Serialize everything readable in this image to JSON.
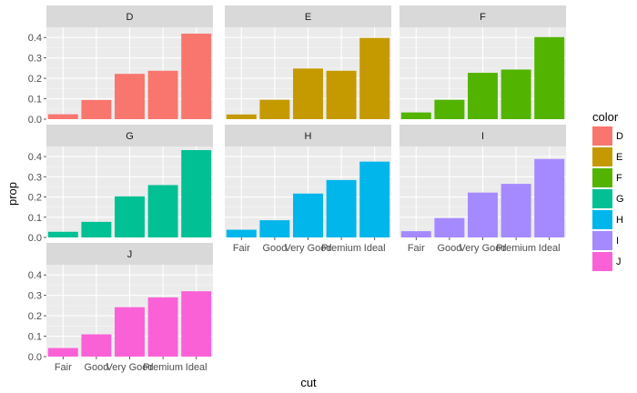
{
  "chart_data": {
    "type": "bar",
    "xlabel": "cut",
    "ylabel": "prop",
    "categories": [
      "Fair",
      "Good",
      "Very Good",
      "Premium",
      "Ideal"
    ],
    "ylim": [
      0,
      0.45
    ],
    "yticks": [
      "0.0",
      "0.1",
      "0.2",
      "0.3",
      "0.4"
    ],
    "ytick_values": [
      0,
      0.1,
      0.2,
      0.3,
      0.4
    ],
    "legend": {
      "title": "color",
      "placement": "right"
    },
    "grid": true,
    "panels": [
      {
        "name": "D",
        "color": "#F8766D",
        "values": [
          0.024,
          0.094,
          0.222,
          0.237,
          0.419
        ]
      },
      {
        "name": "E",
        "color": "#C49A00",
        "values": [
          0.023,
          0.095,
          0.248,
          0.237,
          0.398
        ]
      },
      {
        "name": "F",
        "color": "#53B400",
        "values": [
          0.033,
          0.095,
          0.227,
          0.243,
          0.402
        ]
      },
      {
        "name": "G",
        "color": "#00C094",
        "values": [
          0.028,
          0.077,
          0.203,
          0.259,
          0.432
        ]
      },
      {
        "name": "H",
        "color": "#00B6EB",
        "values": [
          0.038,
          0.085,
          0.217,
          0.284,
          0.375
        ]
      },
      {
        "name": "I",
        "color": "#A58AFF",
        "values": [
          0.031,
          0.096,
          0.222,
          0.265,
          0.388
        ]
      },
      {
        "name": "J",
        "color": "#FB61D7",
        "values": [
          0.042,
          0.109,
          0.242,
          0.29,
          0.32
        ]
      }
    ]
  }
}
